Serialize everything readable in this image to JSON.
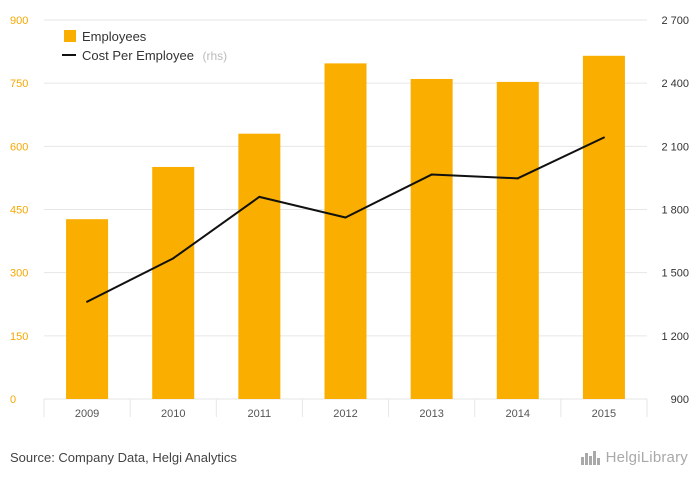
{
  "chart_data": {
    "type": "bar",
    "categories": [
      "2009",
      "2010",
      "2011",
      "2012",
      "2013",
      "2014",
      "2015"
    ],
    "series": [
      {
        "name": "Employees",
        "type": "bar",
        "axis": "left",
        "values": [
          427,
          551,
          630,
          797,
          760,
          753,
          815
        ]
      },
      {
        "name": "Cost Per Employee",
        "type": "line",
        "axis": "right",
        "values": [
          1362,
          1568,
          1860,
          1762,
          1966,
          1948,
          2142
        ]
      }
    ],
    "y_left": {
      "ylim": [
        0,
        900
      ],
      "ticks": [
        "0",
        "150",
        "300",
        "450",
        "600",
        "750",
        "900"
      ]
    },
    "y_right": {
      "ylim": [
        900,
        2700
      ],
      "ticks": [
        "900",
        "1 200",
        "1 500",
        "1 800",
        "2 100",
        "2 400",
        "2 700"
      ]
    },
    "legend": {
      "placement": "top-left",
      "rhs_note": "(rhs)"
    },
    "grid": true,
    "colors": {
      "bars": "#f9ae00",
      "line": "#111111",
      "left_ticks": "#f5a800",
      "grid": "#e6e6e6"
    }
  },
  "footer": {
    "source": "Source: Company Data, Helgi Analytics",
    "logo_text": "HelgiLibrary",
    "logo_icon": "city-skyline-icon"
  }
}
